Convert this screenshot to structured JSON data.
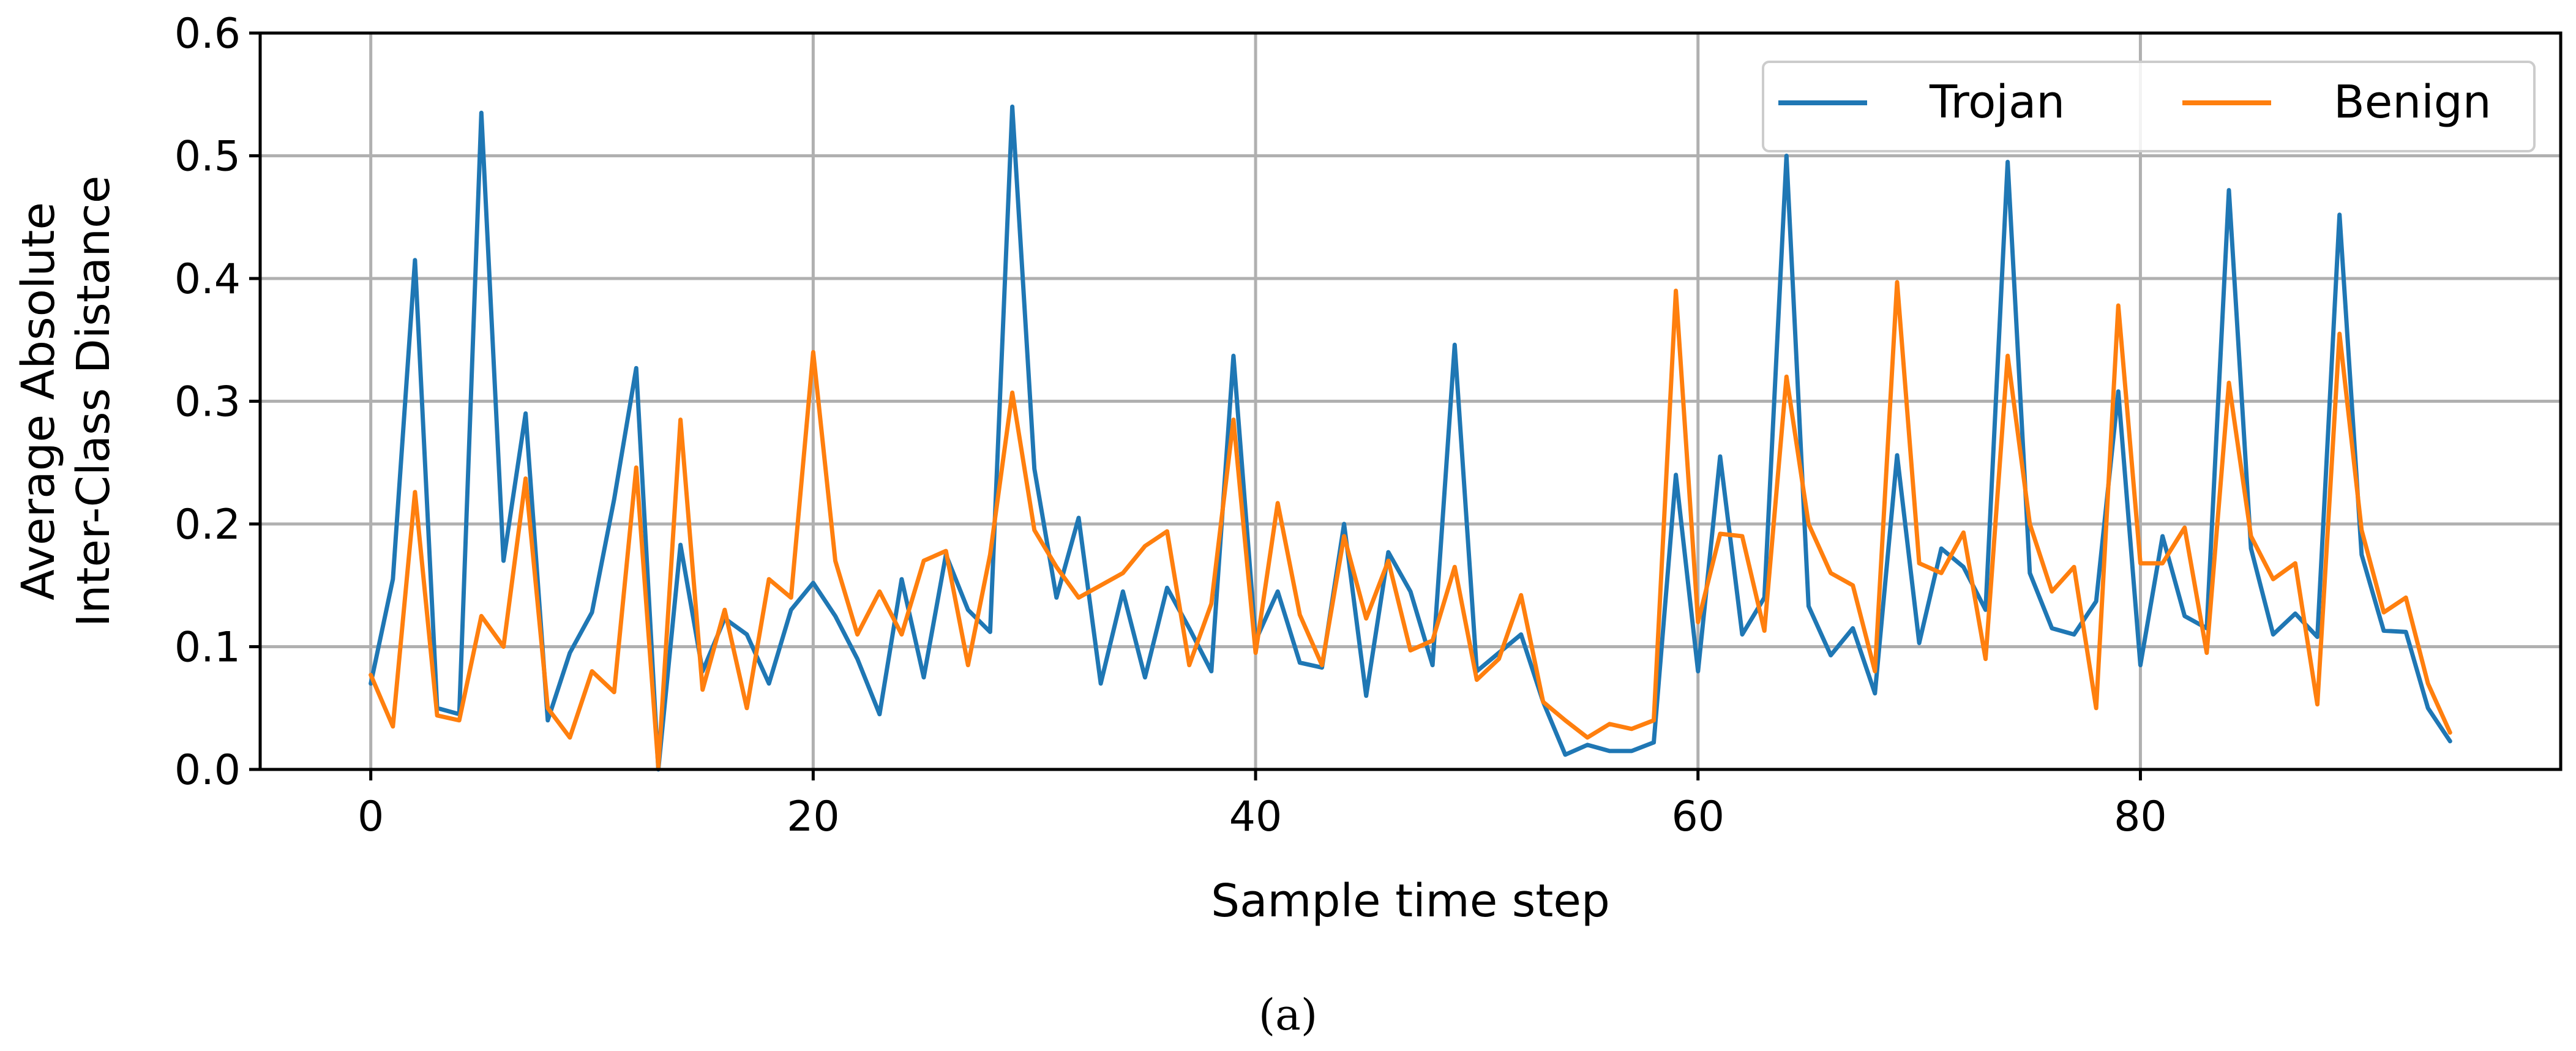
{
  "chart_data": {
    "type": "line",
    "title": "",
    "xlabel": "Sample time step",
    "ylabel_lines": [
      "Average Absolute",
      "Inter-Class Distance"
    ],
    "caption": "(a)",
    "xlim": [
      -5,
      99
    ],
    "ylim": [
      0,
      0.6
    ],
    "xticks": [
      0,
      20,
      40,
      60,
      80
    ],
    "xtick_labels": [
      "0",
      "20",
      "40",
      "60",
      "80"
    ],
    "yticks": [
      0,
      0.1,
      0.2,
      0.3,
      0.4,
      0.5,
      0.6
    ],
    "ytick_labels": [
      "0.0",
      "0.1",
      "0.2",
      "0.3",
      "0.4",
      "0.5",
      "0.6"
    ],
    "grid": true,
    "legend_position": "top-right",
    "series": [
      {
        "name": "Trojan",
        "color": "#1f77b4",
        "values": [
          0.07,
          0.155,
          0.415,
          0.05,
          0.045,
          0.535,
          0.17,
          0.29,
          0.04,
          0.095,
          0.128,
          0.22,
          0.327,
          0.0,
          0.183,
          0.08,
          0.123,
          0.11,
          0.07,
          0.13,
          0.152,
          0.125,
          0.09,
          0.045,
          0.155,
          0.075,
          0.175,
          0.13,
          0.112,
          0.54,
          0.245,
          0.14,
          0.205,
          0.07,
          0.145,
          0.075,
          0.148,
          0.115,
          0.08,
          0.337,
          0.105,
          0.145,
          0.087,
          0.083,
          0.2,
          0.06,
          0.177,
          0.145,
          0.085,
          0.346,
          0.08,
          0.095,
          0.11,
          0.055,
          0.012,
          0.02,
          0.015,
          0.015,
          0.022,
          0.24,
          0.08,
          0.255,
          0.11,
          0.14,
          0.5,
          0.133,
          0.093,
          0.115,
          0.062,
          0.256,
          0.103,
          0.18,
          0.165,
          0.13,
          0.495,
          0.16,
          0.115,
          0.11,
          0.137,
          0.308,
          0.085,
          0.19,
          0.125,
          0.115,
          0.472,
          0.18,
          0.11,
          0.127,
          0.108,
          0.452,
          0.175,
          0.113,
          0.112,
          0.05,
          0.023
        ]
      },
      {
        "name": "Benign",
        "color": "#ff7f0e",
        "values": [
          0.077,
          0.035,
          0.226,
          0.044,
          0.04,
          0.125,
          0.1,
          0.237,
          0.05,
          0.026,
          0.08,
          0.063,
          0.246,
          0.002,
          0.285,
          0.065,
          0.13,
          0.05,
          0.155,
          0.14,
          0.34,
          0.17,
          0.11,
          0.145,
          0.11,
          0.17,
          0.178,
          0.085,
          0.175,
          0.307,
          0.195,
          0.165,
          0.14,
          0.15,
          0.16,
          0.182,
          0.194,
          0.085,
          0.135,
          0.285,
          0.095,
          0.217,
          0.126,
          0.085,
          0.19,
          0.123,
          0.17,
          0.097,
          0.105,
          0.165,
          0.073,
          0.09,
          0.142,
          0.055,
          0.04,
          0.026,
          0.037,
          0.033,
          0.04,
          0.39,
          0.12,
          0.192,
          0.19,
          0.113,
          0.32,
          0.2,
          0.16,
          0.15,
          0.08,
          0.397,
          0.168,
          0.16,
          0.193,
          0.09,
          0.337,
          0.2,
          0.145,
          0.165,
          0.05,
          0.378,
          0.168,
          0.168,
          0.197,
          0.095,
          0.315,
          0.19,
          0.155,
          0.168,
          0.053,
          0.355,
          0.195,
          0.128,
          0.14,
          0.07,
          0.03
        ]
      }
    ]
  }
}
